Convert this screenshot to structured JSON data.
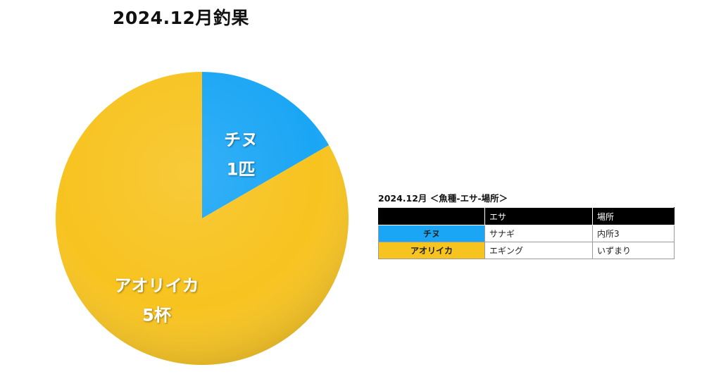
{
  "colors": {
    "fish_1": "#1aa6f5",
    "fish_2": "#f7c31f"
  },
  "chart_data": {
    "type": "pie",
    "title": "2024.12月釣果",
    "slices": [
      {
        "label": "チヌ",
        "value_label": "1匹",
        "value": 1,
        "color": "#1aa6f5"
      },
      {
        "label": "アオリイカ",
        "value_label": "5杯",
        "value": 5,
        "color": "#f7c31f"
      }
    ],
    "start_angle_deg": 0,
    "direction": "clockwise"
  },
  "table": {
    "caption": "2024.12月 ＜魚種-エサ-場所＞",
    "headers": [
      "",
      "エサ",
      "場所"
    ],
    "rows": [
      {
        "fish": "チヌ",
        "bait": "サナギ",
        "place": "内所3",
        "color": "#1aa6f5"
      },
      {
        "fish": "アオリイカ",
        "bait": "エギング",
        "place": "いずまり",
        "color": "#f7c31f"
      }
    ]
  }
}
